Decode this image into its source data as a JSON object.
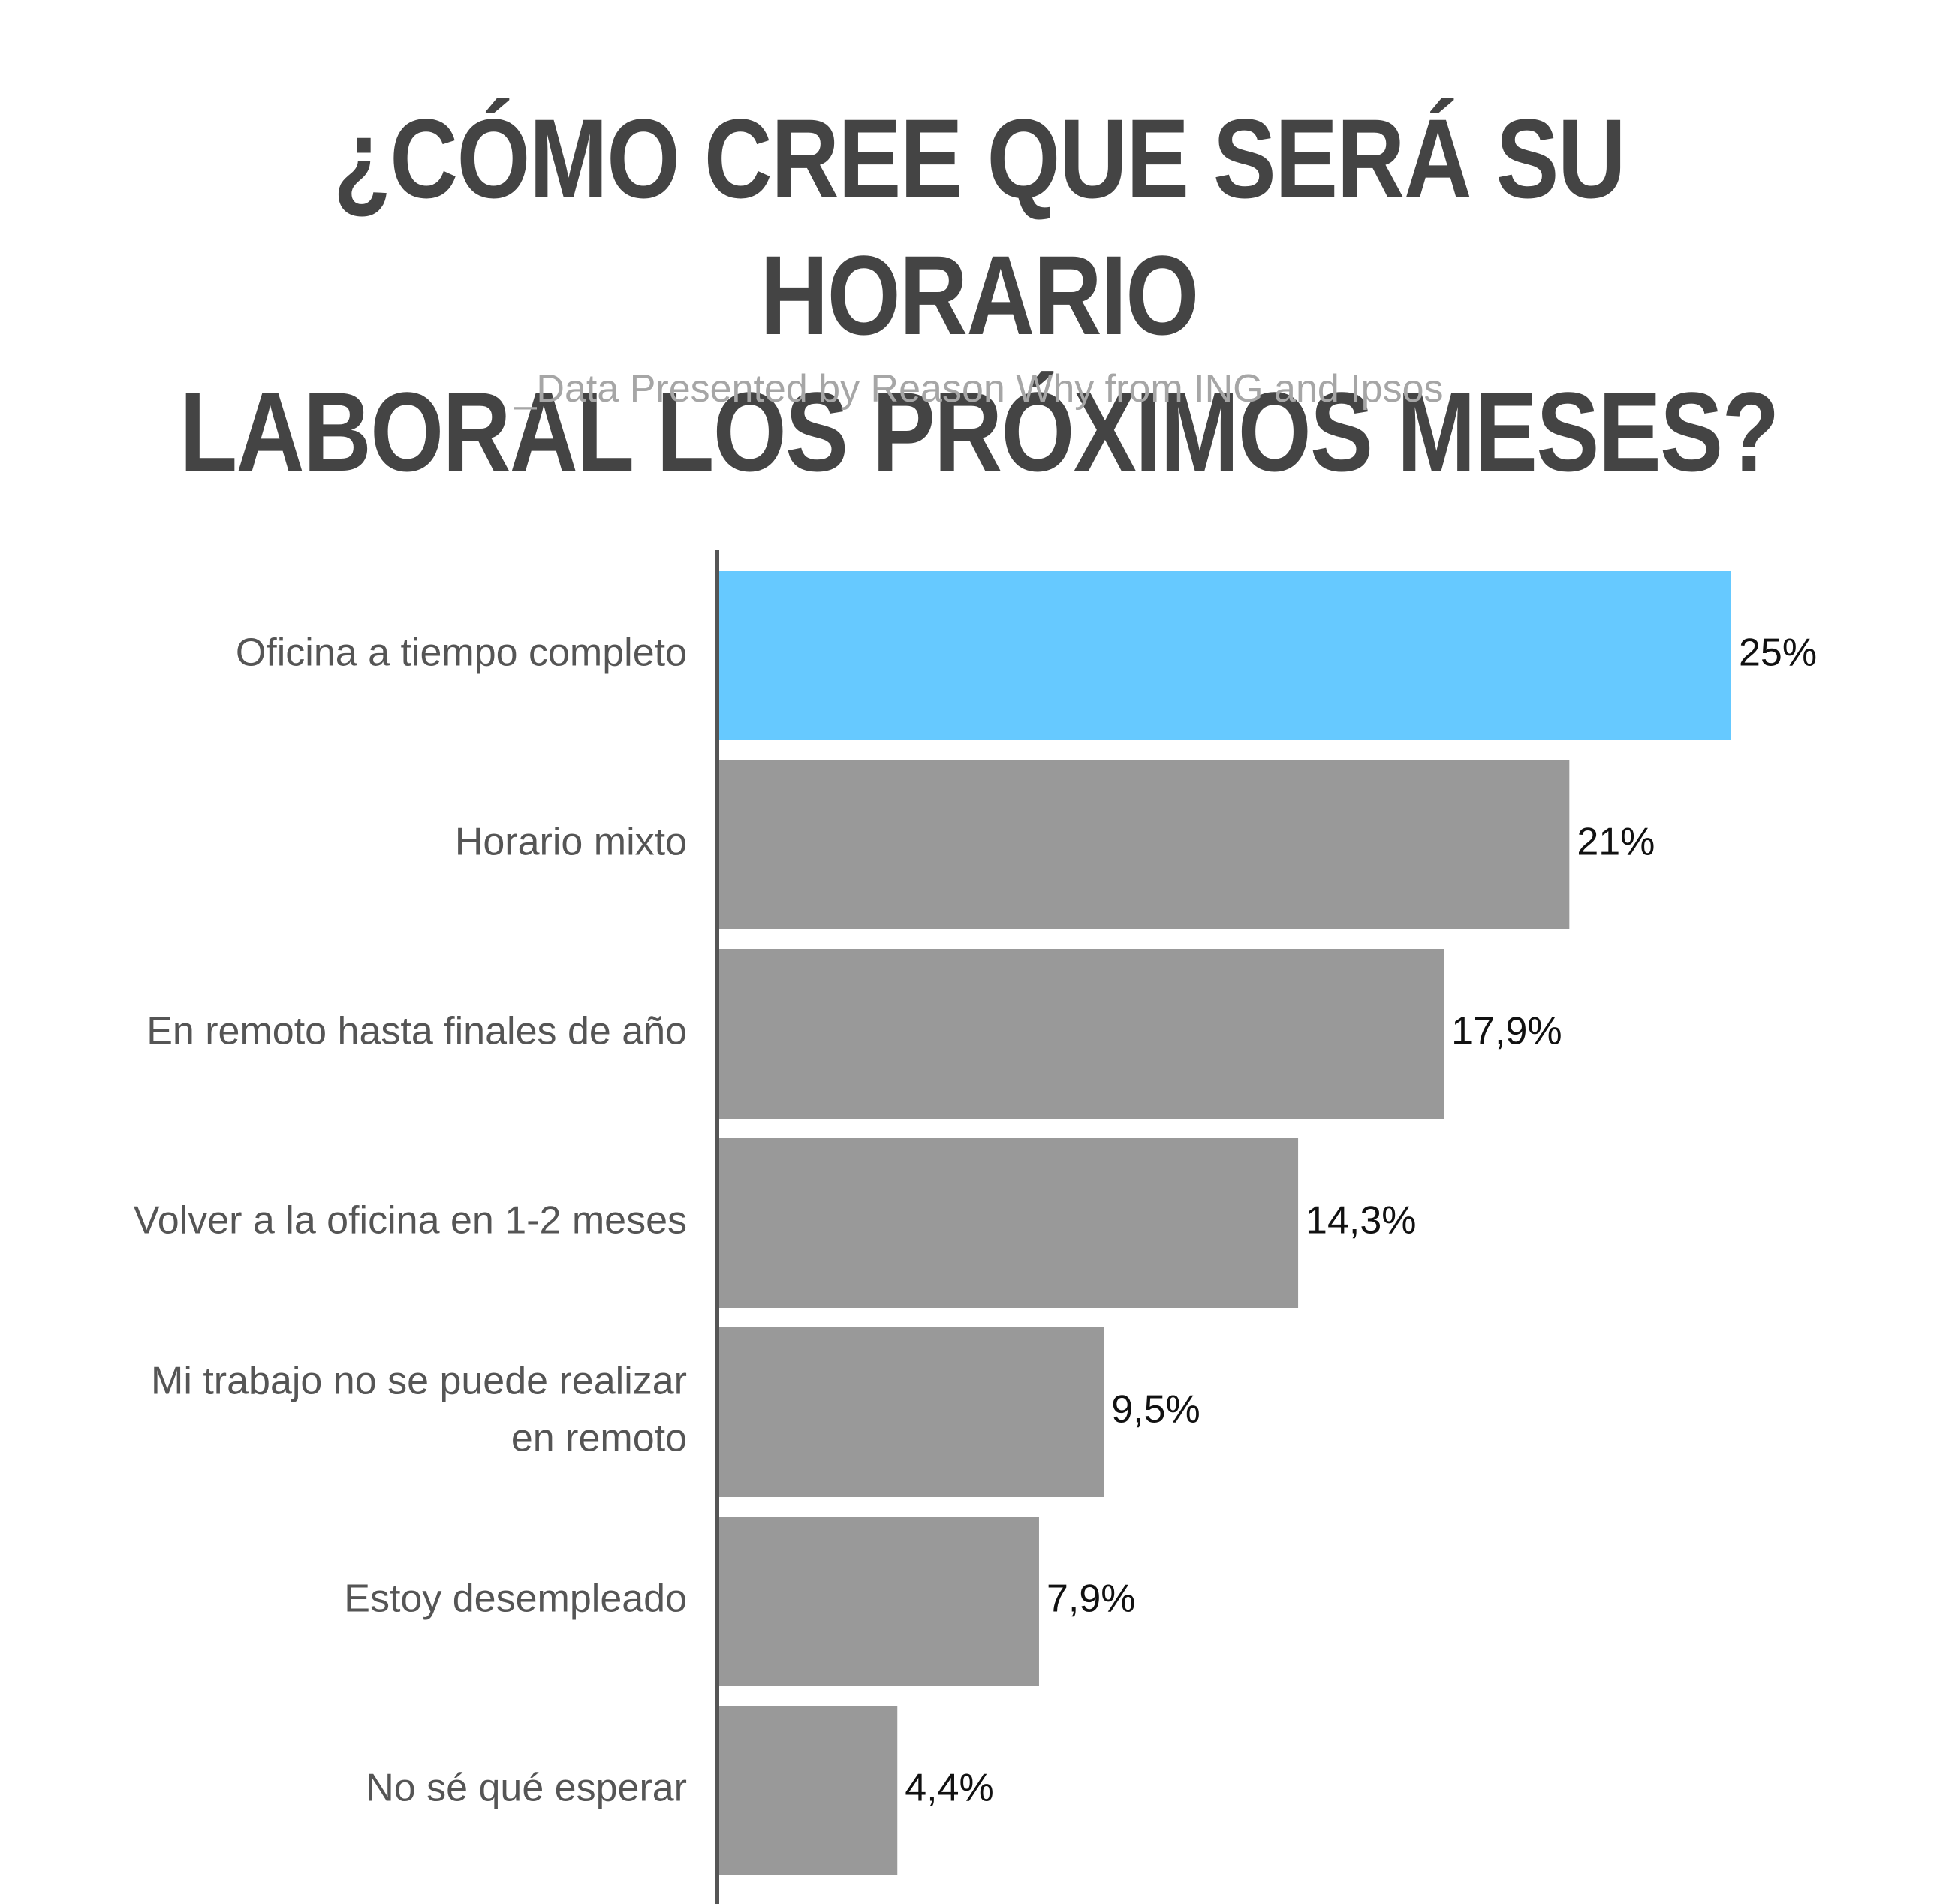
{
  "title_line1": "¿CÓMO CREE QUE SERÁ SU HORARIO",
  "title_line2": "LABORAL LOS PRÓXIMOS MESES?",
  "subtitle": "_Data Presented by Reason Why from ING and Ipsos",
  "colors": {
    "highlight": "#66c9ff",
    "bar": "#999999",
    "axis": "#555555"
  },
  "chart_data": {
    "type": "bar",
    "orientation": "horizontal",
    "categories": [
      [
        "Oficina a tiempo completo"
      ],
      [
        "Horario mixto"
      ],
      [
        "En remoto hasta finales de año"
      ],
      [
        "Volver a la oficina en 1-2 meses"
      ],
      [
        "Mi trabajo no se puede realizar",
        "en remoto"
      ],
      [
        "Estoy desempleado"
      ],
      [
        "No sé qué esperar"
      ]
    ],
    "values": [
      25,
      21,
      17.9,
      14.3,
      9.5,
      7.9,
      4.4
    ],
    "value_labels": [
      "25%",
      "21%",
      "17,9%",
      "14,3%",
      "9,5%",
      "7,9%",
      "4,4%"
    ],
    "highlight_index": 0,
    "xlim": [
      0,
      25
    ],
    "grid": false,
    "legend": "none"
  }
}
